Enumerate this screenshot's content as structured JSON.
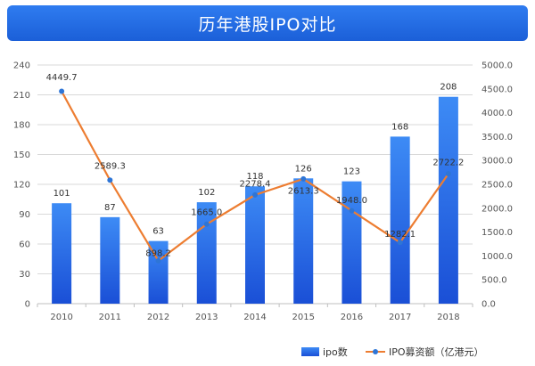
{
  "title": "历年港股IPO对比",
  "chart_data": {
    "type": "bar",
    "title": "历年港股IPO对比",
    "categories": [
      "2010",
      "2011",
      "2012",
      "2013",
      "2014",
      "2015",
      "2016",
      "2017",
      "2018"
    ],
    "series": [
      {
        "name": "ipo数",
        "type": "bar",
        "axis": "left",
        "values": [
          101,
          87,
          63,
          102,
          118,
          126,
          123,
          168,
          208
        ],
        "labels": [
          "101",
          "87",
          "63",
          "102",
          "118",
          "126",
          "123",
          "168",
          "208"
        ],
        "color": "#1f5fe0"
      },
      {
        "name": "IPO募资额（亿港元）",
        "type": "line",
        "axis": "right",
        "values": [
          4449.7,
          2589.3,
          898.2,
          1665.0,
          2278.4,
          2613.3,
          1948.0,
          1282.1,
          2722.2
        ],
        "labels": [
          "4449.7",
          "2589.3",
          "898.2",
          "1665.0",
          "2278.4",
          "2613.3",
          "1948.0",
          "1282.1",
          "2722.2"
        ],
        "color": "#ed7d31",
        "marker_color": "#2e75d6"
      }
    ],
    "y_left": {
      "range": [
        0,
        240
      ],
      "ticks": [
        "0",
        "30",
        "60",
        "90",
        "120",
        "150",
        "180",
        "210",
        "240"
      ]
    },
    "y_right": {
      "range": [
        0,
        5000
      ],
      "ticks": [
        "0.0",
        "500.0",
        "1000.0",
        "1500.0",
        "2000.0",
        "2500.0",
        "3000.0",
        "3500.0",
        "4000.0",
        "4500.0",
        "5000.0"
      ]
    },
    "grid": true,
    "legend_position": "bottom-right"
  }
}
